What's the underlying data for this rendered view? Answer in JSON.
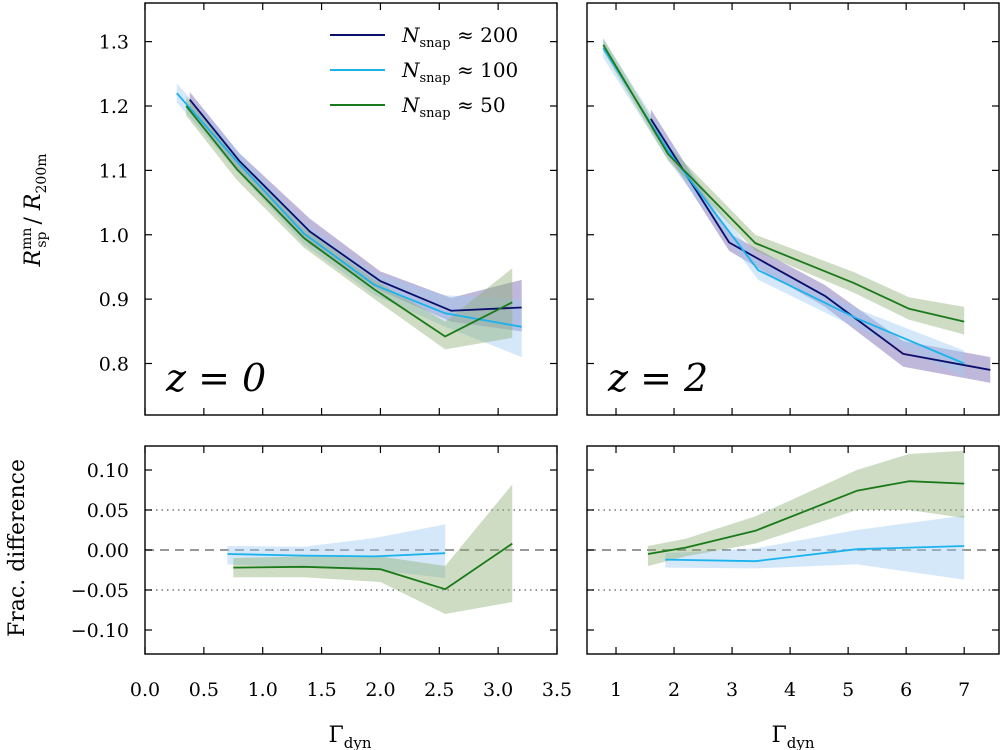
{
  "figure": {
    "y_label_top": "R_sp^mn / R_200m",
    "y_label_top_main": "R",
    "y_label_top_sup": "mn",
    "y_label_top_sub": "sp",
    "y_label_top_den_main": "R",
    "y_label_top_den_sub": "200m",
    "y_label_bottom": "Frac. difference",
    "x_label": "Γ_dyn",
    "x_label_main": "Γ",
    "x_label_sub": "dyn"
  },
  "legend": {
    "location": "upper-right of left-top panel",
    "entries": [
      {
        "name": "N_snap ≈ 200",
        "symbol": "N",
        "sub": "snap",
        "rel": "≈",
        "value": "200",
        "color": "#0b0e6b"
      },
      {
        "name": "N_snap ≈ 100",
        "symbol": "N",
        "sub": "snap",
        "rel": "≈",
        "value": "100",
        "color": "#1ab3ee"
      },
      {
        "name": "N_snap ≈ 50",
        "symbol": "N",
        "sub": "snap",
        "rel": "≈",
        "value": "50",
        "color": "#1a7a1a"
      }
    ]
  },
  "colors": {
    "n200": "#0b0e6b",
    "n100": "#1ab3ee",
    "n50": "#1a7a1a",
    "band200": "#6a56a8",
    "band100": "#9cc8f0",
    "band50": "#8aab70"
  },
  "chart_data": [
    {
      "id": "top-left",
      "type": "line",
      "panel_label": "z = 0",
      "xlim": [
        0.0,
        3.5
      ],
      "ylim": [
        0.72,
        1.36
      ],
      "xticks": [
        0.0,
        0.5,
        1.0,
        1.5,
        2.0,
        2.5,
        3.0,
        3.5
      ],
      "yticks": [
        0.8,
        0.9,
        1.0,
        1.1,
        1.2,
        1.3
      ],
      "ytick_labels": [
        "0.8",
        "0.9",
        "1.0",
        "1.1",
        "1.2",
        "1.3"
      ],
      "series": [
        {
          "name": "N_snap ≈ 200",
          "key": "n200",
          "x": [
            0.38,
            0.8,
            1.4,
            2.0,
            2.6,
            3.2
          ],
          "y": [
            1.21,
            1.115,
            1.005,
            0.928,
            0.882,
            0.887
          ],
          "lo": [
            1.195,
            1.1,
            0.985,
            0.913,
            0.865,
            0.85
          ],
          "hi": [
            1.222,
            1.127,
            1.025,
            0.943,
            0.902,
            0.93
          ]
        },
        {
          "name": "N_snap ≈ 100",
          "key": "n100",
          "x": [
            0.27,
            0.8,
            1.35,
            1.95,
            2.55,
            3.2
          ],
          "y": [
            1.22,
            1.11,
            1.002,
            0.922,
            0.878,
            0.857
          ],
          "lo": [
            1.205,
            1.095,
            0.985,
            0.906,
            0.857,
            0.81
          ],
          "hi": [
            1.235,
            1.127,
            1.02,
            0.94,
            0.906,
            0.9
          ]
        },
        {
          "name": "N_snap ≈ 50",
          "key": "n50",
          "x": [
            0.35,
            0.78,
            1.35,
            1.95,
            2.55,
            3.12
          ],
          "y": [
            1.2,
            1.102,
            0.995,
            0.915,
            0.842,
            0.895
          ],
          "lo": [
            1.185,
            1.085,
            0.98,
            0.9,
            0.822,
            0.84
          ],
          "hi": [
            1.215,
            1.12,
            1.01,
            0.93,
            0.865,
            0.948
          ]
        }
      ]
    },
    {
      "id": "top-right",
      "type": "line",
      "panel_label": "z = 2",
      "xlim": [
        0.5,
        7.6
      ],
      "ylim": [
        0.72,
        1.36
      ],
      "xticks": [
        1,
        2,
        3,
        4,
        5,
        6,
        7
      ],
      "yticks": [
        0.8,
        0.9,
        1.0,
        1.1,
        1.2,
        1.3
      ],
      "series": [
        {
          "name": "N_snap ≈ 200",
          "key": "n200",
          "x": [
            1.6,
            2.95,
            3.6,
            4.6,
            5.95,
            7.45
          ],
          "y": [
            1.18,
            0.988,
            0.955,
            0.905,
            0.815,
            0.79
          ],
          "lo": [
            1.165,
            0.975,
            0.94,
            0.888,
            0.795,
            0.77
          ],
          "hi": [
            1.195,
            1.002,
            0.97,
            0.922,
            0.835,
            0.81
          ]
        },
        {
          "name": "N_snap ≈ 100",
          "key": "n100",
          "x": [
            0.78,
            1.9,
            3.45,
            5.15,
            7.0
          ],
          "y": [
            1.29,
            1.13,
            0.945,
            0.87,
            0.8
          ],
          "lo": [
            1.275,
            1.115,
            0.93,
            0.855,
            0.78
          ],
          "hi": [
            1.305,
            1.145,
            0.96,
            0.885,
            0.82
          ]
        },
        {
          "name": "N_snap ≈ 50",
          "key": "n50",
          "x": [
            0.78,
            1.9,
            3.4,
            5.1,
            6.05,
            7.0
          ],
          "y": [
            1.295,
            1.125,
            0.987,
            0.925,
            0.885,
            0.865
          ],
          "lo": [
            1.285,
            1.115,
            0.975,
            0.91,
            0.868,
            0.845
          ],
          "hi": [
            1.305,
            1.138,
            1.0,
            0.942,
            0.903,
            0.888
          ]
        }
      ]
    },
    {
      "id": "bottom-left",
      "type": "line",
      "xlim": [
        0.0,
        3.5
      ],
      "ylim": [
        -0.13,
        0.13
      ],
      "xticks": [
        0.0,
        0.5,
        1.0,
        1.5,
        2.0,
        2.5,
        3.0,
        3.5
      ],
      "xtick_labels": [
        "0.0",
        "0.5",
        "1.0",
        "1.5",
        "2.0",
        "2.5",
        "3.0",
        "3.5"
      ],
      "yticks": [
        -0.1,
        -0.05,
        0.0,
        0.05,
        0.1
      ],
      "ytick_labels": [
        "−0.10",
        "−0.05",
        "0.00",
        "0.05",
        "0.10"
      ],
      "reference_lines": {
        "dashed": 0.0,
        "dotted": [
          0.05,
          -0.05
        ]
      },
      "series": [
        {
          "name": "N_snap ≈ 100",
          "key": "n100",
          "x": [
            0.7,
            1.35,
            1.95,
            2.55
          ],
          "y": [
            -0.005,
            -0.007,
            -0.008,
            -0.004
          ],
          "lo": [
            -0.018,
            -0.022,
            -0.025,
            -0.035
          ],
          "hi": [
            0.005,
            0.004,
            0.015,
            0.032
          ]
        },
        {
          "name": "N_snap ≈ 50",
          "key": "n50",
          "x": [
            0.75,
            1.35,
            2.0,
            2.55,
            3.12
          ],
          "y": [
            -0.022,
            -0.021,
            -0.024,
            -0.049,
            0.008
          ],
          "lo": [
            -0.034,
            -0.034,
            -0.04,
            -0.08,
            -0.065
          ],
          "hi": [
            -0.01,
            -0.008,
            -0.008,
            -0.02,
            0.082
          ]
        }
      ]
    },
    {
      "id": "bottom-right",
      "type": "line",
      "xlim": [
        0.5,
        7.6
      ],
      "ylim": [
        -0.13,
        0.13
      ],
      "xticks": [
        1,
        2,
        3,
        4,
        5,
        6,
        7
      ],
      "xtick_labels": [
        "1",
        "2",
        "3",
        "4",
        "5",
        "6",
        "7"
      ],
      "yticks": [
        -0.1,
        -0.05,
        0.0,
        0.05,
        0.1
      ],
      "reference_lines": {
        "dashed": 0.0,
        "dotted": [
          0.05,
          -0.05
        ]
      },
      "series": [
        {
          "name": "N_snap ≈ 100",
          "key": "n100",
          "x": [
            1.85,
            3.4,
            5.15,
            7.0
          ],
          "y": [
            -0.012,
            -0.014,
            0.001,
            0.005
          ],
          "lo": [
            -0.022,
            -0.023,
            -0.018,
            -0.037
          ],
          "hi": [
            -0.004,
            0.002,
            0.025,
            0.043
          ]
        },
        {
          "name": "N_snap ≈ 50",
          "key": "n50",
          "x": [
            1.55,
            2.2,
            3.4,
            5.15,
            6.05,
            7.0
          ],
          "y": [
            -0.005,
            0.003,
            0.024,
            0.074,
            0.086,
            0.083
          ],
          "lo": [
            -0.02,
            -0.008,
            0.008,
            0.05,
            0.05,
            0.04
          ],
          "hi": [
            0.005,
            0.014,
            0.042,
            0.1,
            0.12,
            0.124
          ]
        }
      ]
    }
  ]
}
